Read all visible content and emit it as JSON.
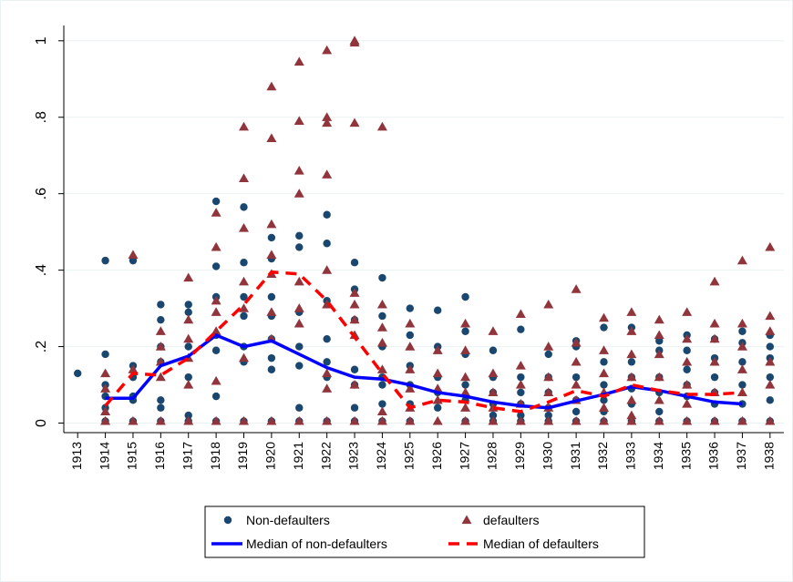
{
  "chart_data": {
    "type": "scatter",
    "xlim": [
      1912.5,
      1938.5
    ],
    "xticks": [
      1913,
      1914,
      1915,
      1916,
      1917,
      1918,
      1919,
      1920,
      1921,
      1922,
      1923,
      1924,
      1925,
      1926,
      1927,
      1928,
      1929,
      1930,
      1931,
      1932,
      1933,
      1934,
      1935,
      1936,
      1937,
      1938
    ],
    "ylim": [
      -0.025,
      1.04
    ],
    "yticks": [
      0,
      {
        "value": 0.2,
        "label": ".2"
      },
      {
        "value": 0.4,
        "label": ".4"
      },
      {
        "value": 0.6,
        "label": ".6"
      },
      {
        "value": 0.8,
        "label": ".8"
      },
      1
    ],
    "grid": true,
    "series": [
      {
        "name": "Non-defaulters",
        "kind": "circle",
        "color": "#1a476f",
        "x": [
          1913,
          1914,
          1914,
          1914,
          1914,
          1914,
          1914,
          1915,
          1915,
          1915,
          1915,
          1915,
          1915,
          1916,
          1916,
          1916,
          1916,
          1916,
          1916,
          1916,
          1917,
          1917,
          1917,
          1917,
          1917,
          1917,
          1918,
          1918,
          1918,
          1918,
          1918,
          1918,
          1918,
          1919,
          1919,
          1919,
          1919,
          1919,
          1919,
          1919,
          1920,
          1920,
          1920,
          1920,
          1920,
          1920,
          1920,
          1920,
          1921,
          1921,
          1921,
          1921,
          1921,
          1921,
          1921,
          1922,
          1922,
          1922,
          1922,
          1922,
          1922,
          1922,
          1923,
          1923,
          1923,
          1923,
          1923,
          1923,
          1923,
          1924,
          1924,
          1924,
          1924,
          1924,
          1924,
          1924,
          1925,
          1925,
          1925,
          1925,
          1925,
          1925,
          1926,
          1926,
          1926,
          1926,
          1926,
          1927,
          1927,
          1927,
          1927,
          1927,
          1927,
          1928,
          1928,
          1928,
          1928,
          1928,
          1928,
          1929,
          1929,
          1929,
          1929,
          1929,
          1929,
          1930,
          1930,
          1930,
          1930,
          1930,
          1930,
          1931,
          1931,
          1931,
          1931,
          1931,
          1931,
          1932,
          1932,
          1932,
          1932,
          1932,
          1932,
          1933,
          1933,
          1933,
          1933,
          1933,
          1933,
          1934,
          1934,
          1934,
          1934,
          1934,
          1934,
          1935,
          1935,
          1935,
          1935,
          1935,
          1935,
          1936,
          1936,
          1936,
          1936,
          1936,
          1936,
          1937,
          1937,
          1937,
          1937,
          1937,
          1937,
          1938,
          1938,
          1938,
          1938,
          1938,
          1938
        ],
        "values": [
          0.13,
          0.425,
          0.18,
          0.1,
          0.07,
          0.04,
          0.005,
          0.425,
          0.15,
          0.12,
          0.07,
          0.06,
          0.005,
          0.31,
          0.27,
          0.2,
          0.16,
          0.06,
          0.04,
          0.005,
          0.31,
          0.29,
          0.2,
          0.12,
          0.02,
          0.005,
          0.58,
          0.41,
          0.33,
          0.23,
          0.19,
          0.07,
          0.005,
          0.565,
          0.42,
          0.33,
          0.28,
          0.2,
          0.16,
          0.005,
          0.485,
          0.43,
          0.33,
          0.28,
          0.22,
          0.17,
          0.14,
          0.005,
          0.49,
          0.46,
          0.29,
          0.2,
          0.15,
          0.04,
          0.005,
          0.545,
          0.47,
          0.32,
          0.22,
          0.16,
          0.12,
          0.005,
          0.42,
          0.35,
          0.27,
          0.14,
          0.1,
          0.04,
          0.005,
          0.38,
          0.28,
          0.2,
          0.12,
          0.1,
          0.05,
          0.005,
          0.3,
          0.23,
          0.15,
          0.1,
          0.05,
          0.005,
          0.295,
          0.2,
          0.12,
          0.08,
          0.04,
          0.33,
          0.24,
          0.18,
          0.1,
          0.06,
          0.005,
          0.19,
          0.12,
          0.08,
          0.05,
          0.02,
          0.005,
          0.245,
          0.12,
          0.08,
          0.05,
          0.02,
          0.005,
          0.18,
          0.12,
          0.08,
          0.04,
          0.02,
          0.005,
          0.215,
          0.2,
          0.12,
          0.06,
          0.03,
          0.005,
          0.25,
          0.16,
          0.1,
          0.06,
          0.03,
          0.005,
          0.25,
          0.16,
          0.12,
          0.09,
          0.05,
          0.005,
          0.215,
          0.19,
          0.12,
          0.08,
          0.03,
          0.005,
          0.23,
          0.19,
          0.14,
          0.1,
          0.07,
          0.005,
          0.22,
          0.17,
          0.12,
          0.08,
          0.05,
          0.005,
          0.24,
          0.21,
          0.16,
          0.1,
          0.05,
          0.005,
          0.23,
          0.2,
          0.17,
          0.12,
          0.06,
          0.005
        ]
      },
      {
        "name": "defaulters",
        "kind": "triangle",
        "color": "#90353b",
        "x": [
          1914,
          1914,
          1914,
          1914,
          1915,
          1915,
          1915,
          1916,
          1916,
          1916,
          1916,
          1916,
          1917,
          1917,
          1917,
          1917,
          1917,
          1917,
          1918,
          1918,
          1918,
          1918,
          1918,
          1918,
          1918,
          1919,
          1919,
          1919,
          1919,
          1919,
          1919,
          1919,
          1920,
          1920,
          1920,
          1920,
          1920,
          1920,
          1920,
          1920,
          1921,
          1921,
          1921,
          1921,
          1921,
          1921,
          1921,
          1921,
          1922,
          1922,
          1922,
          1922,
          1922,
          1922,
          1922,
          1922,
          1922,
          1923,
          1923,
          1923,
          1923,
          1923,
          1923,
          1923,
          1923,
          1923,
          1924,
          1924,
          1924,
          1924,
          1924,
          1924,
          1924,
          1925,
          1925,
          1925,
          1925,
          1925,
          1925,
          1926,
          1926,
          1926,
          1926,
          1926,
          1927,
          1927,
          1927,
          1927,
          1927,
          1927,
          1928,
          1928,
          1928,
          1928,
          1928,
          1929,
          1929,
          1929,
          1929,
          1929,
          1930,
          1930,
          1930,
          1930,
          1930,
          1930,
          1931,
          1931,
          1931,
          1931,
          1931,
          1931,
          1932,
          1932,
          1932,
          1932,
          1932,
          1932,
          1933,
          1933,
          1933,
          1933,
          1933,
          1933,
          1933,
          1934,
          1934,
          1934,
          1934,
          1934,
          1934,
          1935,
          1935,
          1935,
          1935,
          1935,
          1935,
          1936,
          1936,
          1936,
          1936,
          1936,
          1936,
          1937,
          1937,
          1937,
          1937,
          1937,
          1937,
          1938,
          1938,
          1938,
          1938,
          1938,
          1938
        ],
        "values": [
          0.13,
          0.09,
          0.03,
          0.005,
          0.44,
          0.14,
          0.005,
          0.24,
          0.2,
          0.16,
          0.12,
          0.005,
          0.38,
          0.27,
          0.22,
          0.17,
          0.1,
          0.005,
          0.55,
          0.46,
          0.32,
          0.29,
          0.24,
          0.11,
          0.005,
          0.775,
          0.64,
          0.51,
          0.37,
          0.3,
          0.17,
          0.005,
          0.88,
          0.745,
          0.52,
          0.44,
          0.39,
          0.29,
          0.22,
          0.005,
          0.945,
          0.79,
          0.66,
          0.6,
          0.37,
          0.3,
          0.26,
          0.005,
          0.975,
          0.8,
          0.785,
          0.65,
          0.4,
          0.31,
          0.13,
          0.09,
          0.005,
          1,
          0.995,
          0.785,
          0.34,
          0.31,
          0.27,
          0.23,
          0.1,
          0.005,
          0.775,
          0.31,
          0.25,
          0.21,
          0.14,
          0.03,
          0.005,
          0.26,
          0.2,
          0.14,
          0.09,
          0.04,
          0.005,
          0.19,
          0.13,
          0.09,
          0.06,
          0.005,
          0.26,
          0.19,
          0.12,
          0.08,
          0.04,
          0.005,
          0.24,
          0.13,
          0.08,
          0.04,
          0.005,
          0.285,
          0.15,
          0.1,
          0.05,
          0.005,
          0.31,
          0.2,
          0.12,
          0.08,
          0.04,
          0.005,
          0.35,
          0.21,
          0.16,
          0.1,
          0.06,
          0.005,
          0.275,
          0.19,
          0.13,
          0.08,
          0.04,
          0.005,
          0.29,
          0.24,
          0.18,
          0.12,
          0.06,
          0.02,
          0.005,
          0.27,
          0.23,
          0.18,
          0.12,
          0.06,
          0.005,
          0.29,
          0.22,
          0.16,
          0.1,
          0.05,
          0.005,
          0.37,
          0.26,
          0.22,
          0.16,
          0.08,
          0.005,
          0.425,
          0.26,
          0.2,
          0.14,
          0.08,
          0.005,
          0.46,
          0.28,
          0.24,
          0.16,
          0.1,
          0.005
        ]
      },
      {
        "name": "Median of non-defaulters",
        "kind": "line",
        "color": "#0000ff",
        "x": [
          1914,
          1915,
          1916,
          1917,
          1918,
          1919,
          1920,
          1921,
          1922,
          1923,
          1924,
          1925,
          1926,
          1927,
          1928,
          1929,
          1930,
          1931,
          1932,
          1933,
          1934,
          1935,
          1936,
          1937
        ],
        "values": [
          0.065,
          0.065,
          0.15,
          0.175,
          0.23,
          0.2,
          0.215,
          0.18,
          0.145,
          0.12,
          0.115,
          0.1,
          0.08,
          0.07,
          0.055,
          0.045,
          0.04,
          0.058,
          0.075,
          0.095,
          0.085,
          0.07,
          0.055,
          0.05
        ]
      },
      {
        "name": "Median of defaulters",
        "kind": "dashed-line",
        "color": "#ff0000",
        "x": [
          1914,
          1915,
          1916,
          1917,
          1918,
          1919,
          1920,
          1921,
          1922,
          1923,
          1924,
          1925,
          1926,
          1927,
          1928,
          1929,
          1930,
          1931,
          1932,
          1933,
          1934,
          1935,
          1936,
          1937
        ],
        "values": [
          0.045,
          0.13,
          0.125,
          0.17,
          0.24,
          0.31,
          0.395,
          0.39,
          0.32,
          0.225,
          0.13,
          0.04,
          0.06,
          0.055,
          0.04,
          0.03,
          0.055,
          0.085,
          0.07,
          0.1,
          0.085,
          0.075,
          0.075,
          0.08
        ]
      }
    ]
  }
}
